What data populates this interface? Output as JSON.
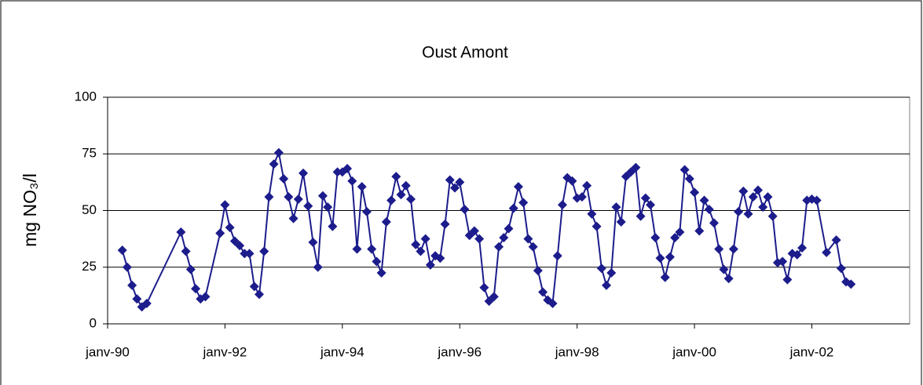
{
  "chart_data": {
    "type": "line",
    "title": "Oust Amont",
    "y_label": "mg NO₃/l",
    "x": [
      "1990-04",
      "1990-05",
      "1990-06",
      "1990-07",
      "1990-08",
      "1990-09",
      "1991-04",
      "1991-05",
      "1991-06",
      "1991-07",
      "1991-08",
      "1991-09",
      "1991-12",
      "1992-01",
      "1992-02",
      "1992-03",
      "1992-04",
      "1992-05",
      "1992-06",
      "1992-07",
      "1992-08",
      "1992-09",
      "1992-10",
      "1992-11",
      "1992-12",
      "1993-01",
      "1993-02",
      "1993-03",
      "1993-04",
      "1993-05",
      "1993-06",
      "1993-07",
      "1993-08",
      "1993-09",
      "1993-10",
      "1993-11",
      "1993-12",
      "1994-01",
      "1994-02",
      "1994-03",
      "1994-04",
      "1994-05",
      "1994-06",
      "1994-07",
      "1994-08",
      "1994-09",
      "1994-10",
      "1994-11",
      "1994-12",
      "1995-01",
      "1995-02",
      "1995-03",
      "1995-04",
      "1995-05",
      "1995-06",
      "1995-07",
      "1995-08",
      "1995-09",
      "1995-10",
      "1995-11",
      "1995-12",
      "1996-01",
      "1996-02",
      "1996-03",
      "1996-04",
      "1996-05",
      "1996-06",
      "1996-07",
      "1996-08",
      "1996-09",
      "1996-10",
      "1996-11",
      "1996-12",
      "1997-01",
      "1997-02",
      "1997-03",
      "1997-04",
      "1997-05",
      "1997-06",
      "1997-07",
      "1997-08",
      "1997-09",
      "1997-10",
      "1997-11",
      "1997-12",
      "1998-01",
      "1998-02",
      "1998-03",
      "1998-04",
      "1998-05",
      "1998-06",
      "1998-07",
      "1998-08",
      "1998-09",
      "1998-10",
      "1998-11",
      "1998-12",
      "1999-01",
      "1999-02",
      "1999-03",
      "1999-04",
      "1999-05",
      "1999-06",
      "1999-07",
      "1999-08",
      "1999-09",
      "1999-10",
      "1999-11",
      "1999-12",
      "2000-01",
      "2000-02",
      "2000-03",
      "2000-04",
      "2000-05",
      "2000-06",
      "2000-07",
      "2000-08",
      "2000-09",
      "2000-10",
      "2000-11",
      "2000-12",
      "2001-01",
      "2001-02",
      "2001-03",
      "2001-04",
      "2001-05",
      "2001-06",
      "2001-07",
      "2001-08",
      "2001-09",
      "2001-10",
      "2001-11",
      "2001-12",
      "2002-01",
      "2002-02",
      "2002-04",
      "2002-06",
      "2002-07",
      "2002-08",
      "2002-09"
    ],
    "values": [
      32.5,
      25,
      17,
      11,
      7.5,
      9,
      40.5,
      32,
      24,
      15.5,
      11,
      12,
      40,
      52.5,
      42.5,
      36.5,
      34.5,
      31,
      31,
      16.5,
      13,
      32,
      56,
      70.5,
      75.5,
      64,
      56,
      46.5,
      55,
      66.5,
      52,
      36,
      25,
      56.5,
      51.5,
      43,
      67,
      67,
      68.5,
      63,
      33,
      60.5,
      49.5,
      33,
      27.5,
      22.5,
      45,
      54.5,
      65,
      57,
      61,
      55,
      35,
      32,
      37.5,
      26,
      30,
      29,
      44,
      63.5,
      60,
      62.5,
      50.5,
      39,
      41,
      37.5,
      16,
      10,
      12,
      34,
      38,
      42,
      51,
      60.5,
      53.5,
      37.5,
      34,
      23.5,
      14,
      10.5,
      9,
      30,
      52.5,
      64.5,
      63,
      55.5,
      56,
      61,
      48.5,
      43,
      24.5,
      17,
      22.5,
      51.5,
      45,
      65,
      67,
      69,
      47.5,
      55.5,
      52.5,
      38,
      29,
      20.5,
      29.5,
      38,
      40.5,
      68,
      64,
      58,
      41,
      54.5,
      50.5,
      44.5,
      33,
      24,
      20,
      33,
      49.5,
      58.5,
      48.5,
      56,
      59,
      51.5,
      56,
      47.5,
      27,
      27.5,
      19.5,
      31,
      30.5,
      33.5,
      54.5,
      55,
      54.5,
      31.5,
      37,
      24.5,
      18.5,
      17.5
    ],
    "color": "#1c1c8c",
    "xlim": [
      "1990-01",
      "2003-09"
    ],
    "xticks": [
      {
        "value": "1990-01",
        "label": "janv-90"
      },
      {
        "value": "1992-01",
        "label": "janv-92"
      },
      {
        "value": "1994-01",
        "label": "janv-94"
      },
      {
        "value": "1996-01",
        "label": "janv-96"
      },
      {
        "value": "1998-01",
        "label": "janv-98"
      },
      {
        "value": "2000-01",
        "label": "janv-00"
      },
      {
        "value": "2002-01",
        "label": "janv-02"
      }
    ],
    "ylim": [
      0,
      100
    ],
    "yticks": [
      0,
      25,
      50,
      75,
      100
    ],
    "grid": true
  }
}
